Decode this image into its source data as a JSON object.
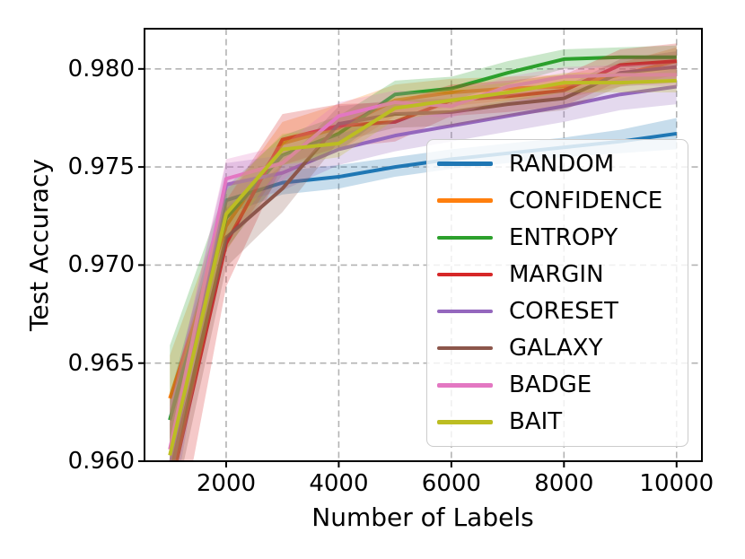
{
  "figure": {
    "background": "#ffffff",
    "grid_color": "#b3b3b3",
    "spine_color": "#000000"
  },
  "chart_data": {
    "type": "line",
    "title": "",
    "xlabel": "Number of Labels",
    "ylabel": "Test Accuracy",
    "x": [
      1000,
      2000,
      3000,
      4000,
      5000,
      6000,
      7000,
      8000,
      9000,
      10000
    ],
    "xlim": [
      550,
      10450
    ],
    "ylim": [
      0.96,
      0.98205
    ],
    "xticks": [
      2000,
      4000,
      6000,
      8000,
      10000
    ],
    "xtick_labels": [
      "2000",
      "4000",
      "6000",
      "8000",
      "10000"
    ],
    "yticks": [
      0.96,
      0.965,
      0.97,
      0.975,
      0.98
    ],
    "ytick_labels": [
      "0.960",
      "0.965",
      "0.970",
      "0.975",
      "0.980"
    ],
    "grid": true,
    "grid_style": "dashed",
    "legend_position": "inside center-right",
    "band_opacity": 0.25,
    "line_width": 4,
    "series": [
      {
        "name": "RANDOM",
        "color": "#1f77b4",
        "values": [
          0.9621,
          0.9733,
          0.9742,
          0.9745,
          0.975,
          0.9754,
          0.9757,
          0.976,
          0.9763,
          0.9767
        ],
        "band": [
          0.0013,
          0.0007,
          0.0006,
          0.0006,
          0.0005,
          0.0005,
          0.0005,
          0.0005,
          0.0006,
          0.0008
        ]
      },
      {
        "name": "CONFIDENCE",
        "color": "#ff7f0e",
        "values": [
          0.9632,
          0.972,
          0.9762,
          0.977,
          0.9784,
          0.9788,
          0.979,
          0.9791,
          0.9797,
          0.9804
        ],
        "band": [
          0.0022,
          0.0013,
          0.0011,
          0.0012,
          0.0008,
          0.0007,
          0.0006,
          0.0006,
          0.0006,
          0.0007
        ]
      },
      {
        "name": "ENTROPY",
        "color": "#2ca02c",
        "values": [
          0.9621,
          0.9724,
          0.9756,
          0.9767,
          0.9787,
          0.979,
          0.9798,
          0.9805,
          0.9806,
          0.9806
        ],
        "band": [
          0.0038,
          0.0016,
          0.001,
          0.0009,
          0.0007,
          0.0006,
          0.0006,
          0.0005,
          0.0005,
          0.0006
        ]
      },
      {
        "name": "MARGIN",
        "color": "#d62728",
        "values": [
          0.9585,
          0.9711,
          0.9764,
          0.9771,
          0.9773,
          0.9784,
          0.9786,
          0.9789,
          0.9802,
          0.9804
        ],
        "band": [
          0.0048,
          0.0022,
          0.0013,
          0.0011,
          0.001,
          0.0008,
          0.0008,
          0.0008,
          0.0008,
          0.0009
        ]
      },
      {
        "name": "CORESET",
        "color": "#9467bd",
        "values": [
          0.9597,
          0.9741,
          0.9747,
          0.9759,
          0.9766,
          0.9771,
          0.9776,
          0.9781,
          0.9787,
          0.9791
        ],
        "band": [
          0.003,
          0.0011,
          0.0009,
          0.0008,
          0.0008,
          0.0008,
          0.0008,
          0.0008,
          0.0008,
          0.0009
        ]
      },
      {
        "name": "GALAXY",
        "color": "#8c564b",
        "values": [
          0.9593,
          0.9714,
          0.9739,
          0.9772,
          0.9777,
          0.9778,
          0.9782,
          0.9785,
          0.9798,
          0.9801
        ],
        "band": [
          0.0026,
          0.0015,
          0.0012,
          0.0009,
          0.0007,
          0.0007,
          0.0006,
          0.0006,
          0.0007,
          0.0008
        ]
      },
      {
        "name": "BADGE",
        "color": "#e377c2",
        "values": [
          0.9606,
          0.9744,
          0.9752,
          0.9776,
          0.9783,
          0.9781,
          0.9791,
          0.9796,
          0.9797,
          0.9797
        ],
        "band": [
          0.0021,
          0.001,
          0.0009,
          0.0007,
          0.0006,
          0.0006,
          0.0005,
          0.0005,
          0.0005,
          0.0006
        ]
      },
      {
        "name": "BAIT",
        "color": "#bcbd22",
        "values": [
          0.9603,
          0.9726,
          0.9759,
          0.9762,
          0.978,
          0.9784,
          0.9788,
          0.9793,
          0.9793,
          0.9794
        ],
        "band": [
          0.0023,
          0.0012,
          0.0008,
          0.0007,
          0.0006,
          0.0006,
          0.0005,
          0.0005,
          0.0005,
          0.0006
        ]
      }
    ]
  }
}
